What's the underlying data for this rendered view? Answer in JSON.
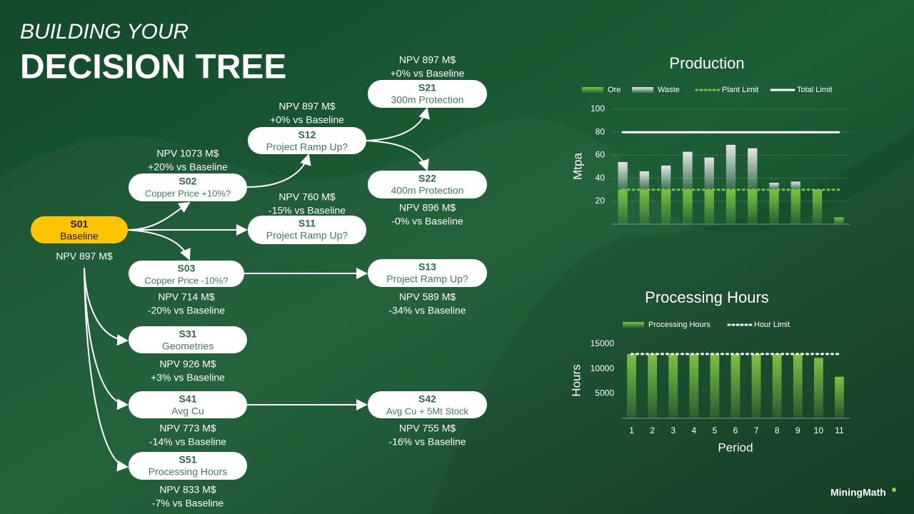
{
  "header": {
    "subtitle": "BUILDING YOUR",
    "title": "DECISION TREE"
  },
  "nodes": [
    {
      "id": "S01",
      "label": "Baseline",
      "npv": "NPV 897 M$"
    },
    {
      "id": "S02",
      "label": "Copper Price +10%?",
      "npv": "NPV 1073 M$",
      "delta": "+20% vs Baseline"
    },
    {
      "id": "S03",
      "label": "Copper Price -10%?",
      "npv": "NPV 714 M$",
      "delta": "-20% vs Baseline"
    },
    {
      "id": "S11",
      "label": "Project Ramp Up?",
      "npv": "NPV 760 M$",
      "delta": "-15% vs Baseline"
    },
    {
      "id": "S12",
      "label": "Project Ramp Up?",
      "npv": "NPV 897 M$",
      "delta": "+0% vs Baseline"
    },
    {
      "id": "S13",
      "label": "Project Ramp Up?",
      "npv": "NPV 589 M$",
      "delta": "-34% vs Baseline"
    },
    {
      "id": "S21",
      "label": "300m Protection",
      "npv": "NPV 897 M$",
      "delta": "+0% vs Baseline"
    },
    {
      "id": "S22",
      "label": "400m Protection",
      "npv": "NPV 896 M$",
      "delta": "-0% vs Baseline"
    },
    {
      "id": "S31",
      "label": "Geometries",
      "npv": "NPV 926 M$",
      "delta": "+3% vs Baseline"
    },
    {
      "id": "S41",
      "label": "Avg Cu",
      "npv": "NPV 773 M$",
      "delta": "-14% vs Baseline"
    },
    {
      "id": "S42",
      "label": "Avg Cu + 5Mt Stock",
      "npv": "NPV 755 M$",
      "delta": "-16% vs Baseline"
    },
    {
      "id": "S51",
      "label": "Processing Hours",
      "npv": "NPV 833 M$",
      "delta": "-7% vs Baseline"
    }
  ],
  "logo": "MiningMath",
  "chart_data": [
    {
      "type": "bar",
      "title": "Production",
      "y_label": "Mtpa",
      "categories": [
        null,
        null,
        null,
        null,
        null,
        null,
        null,
        null,
        null,
        null,
        null
      ],
      "series": [
        {
          "name": "Ore",
          "type": "bar",
          "color": "#7cc242",
          "values": [
            30,
            30,
            30,
            30,
            30,
            30,
            30,
            30,
            30,
            30,
            6
          ]
        },
        {
          "name": "Waste",
          "type": "bar",
          "color": "#e6e6e6",
          "values": [
            24,
            16,
            21,
            33,
            28,
            39,
            36,
            6,
            7,
            0,
            0
          ]
        },
        {
          "name": "Plant Limit",
          "type": "line",
          "style": "dotted",
          "color": "#7cc242",
          "values": [
            30,
            30,
            30,
            30,
            30,
            30,
            30,
            30,
            30,
            30,
            30
          ]
        },
        {
          "name": "Total Limit",
          "type": "line",
          "style": "solid",
          "color": "#ffffff",
          "values": [
            80,
            80,
            80,
            80,
            80,
            80,
            80,
            80,
            80,
            80,
            80
          ]
        }
      ],
      "stacked": true,
      "ylim": [
        0,
        100
      ],
      "yticks": [
        20,
        40,
        60,
        80,
        100
      ],
      "grid": true
    },
    {
      "type": "bar",
      "title": "Processing Hours",
      "y_label": "Hours",
      "x_label": "Period",
      "categories": [
        "1",
        "2",
        "3",
        "4",
        "5",
        "6",
        "7",
        "8",
        "9",
        "10",
        "11"
      ],
      "series": [
        {
          "name": "Processing Hours",
          "type": "bar",
          "color": "#7cc242",
          "values": [
            13000,
            13000,
            13000,
            13000,
            13000,
            13000,
            13000,
            13000,
            13000,
            12200,
            8400
          ]
        },
        {
          "name": "Hour Limit",
          "type": "line",
          "style": "dotted",
          "color": "#ffffff",
          "values": [
            13000,
            13000,
            13000,
            13000,
            13000,
            13000,
            13000,
            13000,
            13000,
            13000,
            13000
          ]
        }
      ],
      "stacked": false,
      "ylim": [
        0,
        15000
      ],
      "yticks": [
        5000,
        10000,
        15000
      ],
      "grid": false
    }
  ]
}
